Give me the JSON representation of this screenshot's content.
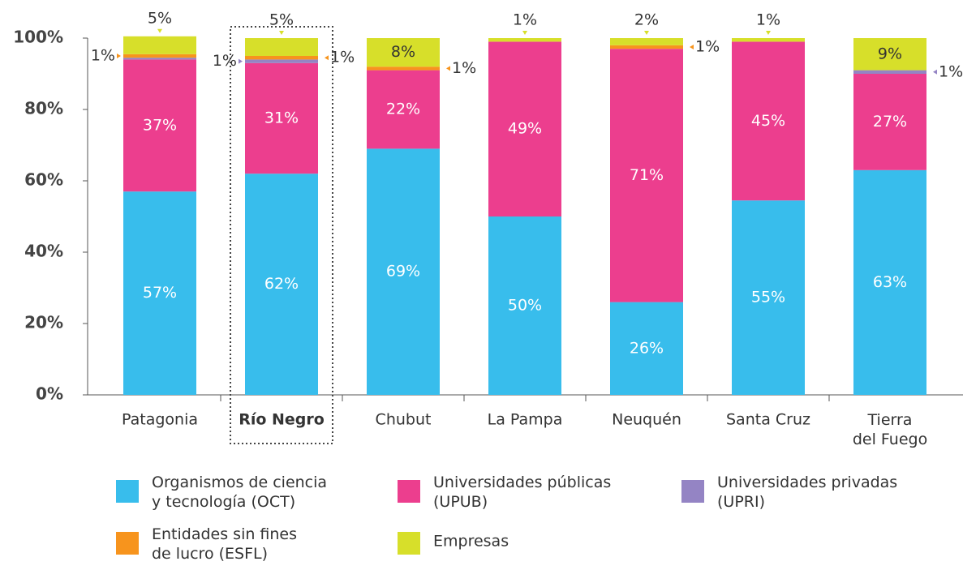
{
  "chart_data": {
    "type": "stacked_bar",
    "categories": [
      "Patagonia",
      "Río Negro",
      "Chubut",
      "La Pampa",
      "Neuquén",
      "Santa Cruz",
      "Tierra\ndel Fuego"
    ],
    "highlight": "Río Negro",
    "series": [
      {
        "name": "Organismos de ciencia\ny tecnología (OCT)",
        "color": "#38bdec",
        "values": [
          57,
          62,
          69,
          50,
          26,
          54.5,
          63
        ],
        "value_labels": [
          "57%",
          "62%",
          "69%",
          "50%",
          "26%",
          "55%",
          "63%"
        ]
      },
      {
        "name": "Universidades públicas\n(UPUB)",
        "color": "#ec3e8e",
        "values": [
          37,
          31,
          22,
          49,
          71,
          44.5,
          27
        ],
        "value_labels": [
          "37%",
          "31%",
          "22%",
          "49%",
          "71%",
          "45%",
          "27%"
        ]
      },
      {
        "name": "Universidades privadas\n(UPRI)",
        "color": "#9484c4",
        "values": [
          0.5,
          1,
          0,
          0,
          0,
          0,
          1
        ],
        "value_labels": [
          null,
          "1%",
          null,
          null,
          null,
          null,
          "1%"
        ]
      },
      {
        "name": "Entidades sin fines\nde lucro (ESFL)",
        "color": "#f7941d",
        "values": [
          1,
          1,
          1,
          0,
          1,
          0,
          0
        ],
        "value_labels": [
          "1%",
          "1%",
          "1%",
          null,
          "1%",
          null,
          null
        ]
      },
      {
        "name": "Empresas",
        "color": "#d7df2a",
        "values": [
          5,
          5,
          8,
          1,
          2,
          1,
          9
        ],
        "value_labels": [
          "5%",
          "5%",
          "8%",
          "1%",
          "2%",
          "1%",
          "9%"
        ]
      }
    ],
    "ylim": [
      0,
      100
    ],
    "yticks": [
      {
        "value": 0,
        "label": "0%"
      },
      {
        "value": 20,
        "label": "20%"
      },
      {
        "value": 40,
        "label": "40%"
      },
      {
        "value": 60,
        "label": "60%"
      },
      {
        "value": 80,
        "label": "80%"
      },
      {
        "value": 100,
        "label": "100%"
      }
    ]
  }
}
